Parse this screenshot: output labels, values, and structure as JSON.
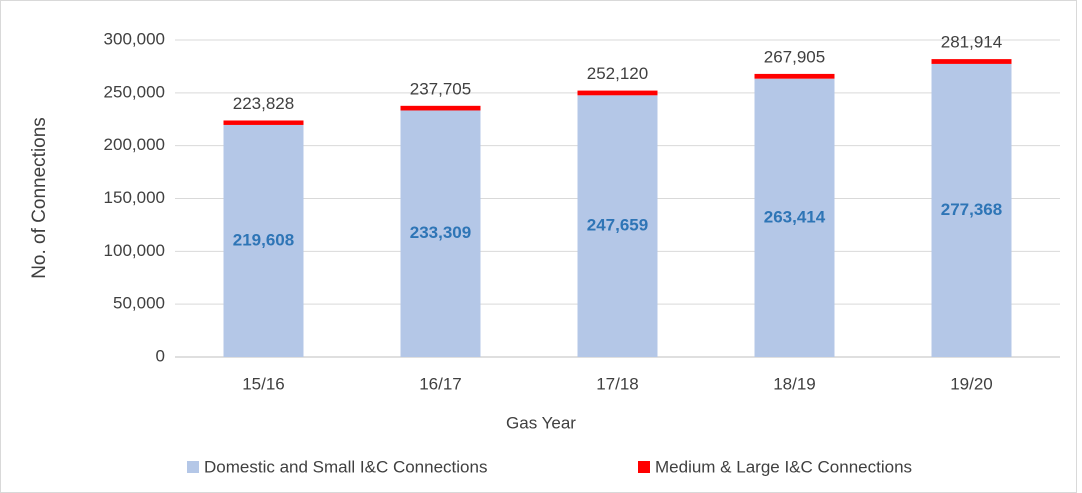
{
  "chart_data": {
    "type": "stacked-bar",
    "x_label": "Gas Year",
    "y_label": "No. of Connections",
    "categories": [
      "15/16",
      "16/17",
      "17/18",
      "18/19",
      "19/20"
    ],
    "series": [
      {
        "name": "Domestic and Small I&C Connections",
        "color": "#b4c7e7",
        "values": [
          219608,
          233309,
          247659,
          263414,
          277368
        ],
        "value_labels": [
          "219,608",
          "233,309",
          "247,659",
          "263,414",
          "277,368"
        ],
        "label_color": "#2e75b6"
      },
      {
        "name": "Medium & Large I&C Connections",
        "color": "#ff0000",
        "values": [
          4220,
          4396,
          4461,
          4491,
          4546
        ]
      }
    ],
    "totals": [
      223828,
      237705,
      252120,
      267905,
      281914
    ],
    "total_labels": [
      "223,828",
      "237,705",
      "252,120",
      "267,905",
      "281,914"
    ],
    "ylim": [
      0,
      300000
    ],
    "yticks": [
      0,
      {
        "value": 50000,
        "label": "50,000"
      },
      {
        "value": 100000,
        "label": "100,000"
      },
      {
        "value": 150000,
        "label": "150,000"
      },
      {
        "value": 200000,
        "label": "200,000"
      },
      {
        "value": 250000,
        "label": "250,000"
      },
      {
        "value": 300000,
        "label": "300,000"
      }
    ],
    "grid": true,
    "legend": "bottom"
  }
}
